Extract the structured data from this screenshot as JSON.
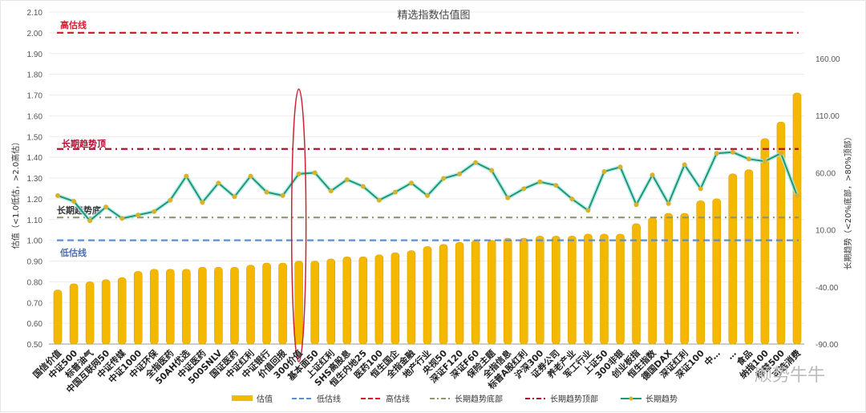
{
  "chart_data": {
    "type": "bar",
    "title": "精选指数估值图",
    "ylabel": "估值（<1.0低估，>2.0高估）",
    "y2label": "长期趋势（<20%底部，>80%顶部）",
    "ylim": [
      0.5,
      2.1
    ],
    "yticks": [
      "0.50",
      "0.60",
      "0.70",
      "0.80",
      "0.90",
      "1.00",
      "1.10",
      "1.20",
      "1.30",
      "1.40",
      "1.50",
      "1.60",
      "1.70",
      "1.80",
      "1.90",
      "2.00",
      "2.10"
    ],
    "y2lim": [
      -90,
      160
    ],
    "y2ticks": [
      "-90.00",
      "-40.00",
      "10.00",
      "60.00",
      "110.00",
      "160.00"
    ],
    "grid": true,
    "legend_position": "bottom",
    "categories": [
      "国信价值",
      "中证500",
      "标普油气",
      "中国互联网50",
      "中证传媒",
      "中证1000",
      "中证环保",
      "全指医药",
      "50AH优选",
      "中证医药",
      "500SNLV",
      "国证医药",
      "中证红利",
      "中证银行",
      "价值回报",
      "300价值",
      "基本面50",
      "上证红利",
      "SHS高股息",
      "恒生内地25",
      "医药100",
      "恒生国企",
      "全指金融",
      "地产行业",
      "央视50",
      "深证F120",
      "深证F60",
      "保险主题",
      "全指信息",
      "标普A股红利",
      "沪深300",
      "证券公司",
      "养老产业",
      "军工行业",
      "上证50",
      "300非银",
      "创业板指",
      "恒生指数",
      "德国DAX",
      "深证红利",
      "深证100",
      "中…",
      "…",
      "食品",
      "纳指100",
      "标普500",
      "可选消费"
    ],
    "series": [
      {
        "name": "估值",
        "type": "bar",
        "axis": "left",
        "values": [
          0.76,
          0.79,
          0.8,
          0.81,
          0.82,
          0.85,
          0.86,
          0.86,
          0.86,
          0.87,
          0.87,
          0.87,
          0.88,
          0.89,
          0.89,
          0.9,
          0.9,
          0.91,
          0.92,
          0.92,
          0.93,
          0.94,
          0.95,
          0.97,
          0.98,
          0.99,
          1.0,
          1.0,
          1.01,
          1.01,
          1.02,
          1.02,
          1.02,
          1.03,
          1.03,
          1.03,
          1.08,
          1.11,
          1.13,
          1.13,
          1.19,
          1.2,
          1.32,
          1.34,
          1.49,
          1.57,
          1.71
        ]
      },
      {
        "name": "长期趋势",
        "type": "line",
        "axis": "right",
        "values": [
          40,
          35,
          18,
          30,
          20,
          23,
          26,
          36,
          57,
          34,
          51,
          39,
          57,
          43,
          40,
          59,
          60,
          44,
          54,
          48,
          36,
          43,
          51,
          40,
          55,
          59,
          69,
          62,
          38,
          46,
          52,
          49,
          37,
          27,
          61,
          65,
          32,
          58,
          33,
          67,
          46,
          77,
          78,
          72,
          70,
          77,
          40
        ]
      },
      {
        "name": "低估线",
        "type": "reference",
        "axis": "left",
        "value": 1.0,
        "color": "#5b8fd4"
      },
      {
        "name": "高估线",
        "type": "reference",
        "axis": "left",
        "value": 2.0,
        "color": "#d0202e"
      },
      {
        "name": "长期趋势底部",
        "type": "reference",
        "axis": "left",
        "value": 1.11,
        "color": "#8a9a6a"
      },
      {
        "name": "长期趋势顶部",
        "type": "reference",
        "axis": "left",
        "value": 1.44,
        "color": "#b01030"
      }
    ],
    "annotations": [
      "高估线",
      "长期趋势顶",
      "长期趋势底",
      "低估线"
    ]
  },
  "labels": {
    "title": "精选指数估值图",
    "high_line": "高估线",
    "trend_top": "长期趋势顶",
    "trend_bottom": "长期趋势底",
    "low_line": "低估线",
    "ylabel": "估值（<1.0低估，>2.0高估）",
    "y2label": "长期趋势（<20%底部，>80%顶部）"
  },
  "legend": [
    {
      "label": "估值",
      "kind": "bar",
      "color": "#f5b800"
    },
    {
      "label": "低估线",
      "kind": "dash",
      "color": "#5b8fd4"
    },
    {
      "label": "高估线",
      "kind": "dash",
      "color": "#d0202e"
    },
    {
      "label": "长期趋势底部",
      "kind": "dashdot",
      "color": "#8a9a6a"
    },
    {
      "label": "长期趋势顶部",
      "kind": "dashdot",
      "color": "#b01030"
    },
    {
      "label": "长期趋势",
      "kind": "line",
      "color": "#1f9a6e"
    }
  ],
  "colors": {
    "bar": "#f5b800",
    "trend": "#1f9a6e",
    "marker": "#d9b22a",
    "highlight": "#cc2233"
  },
  "watermark": "顺势牛牛"
}
